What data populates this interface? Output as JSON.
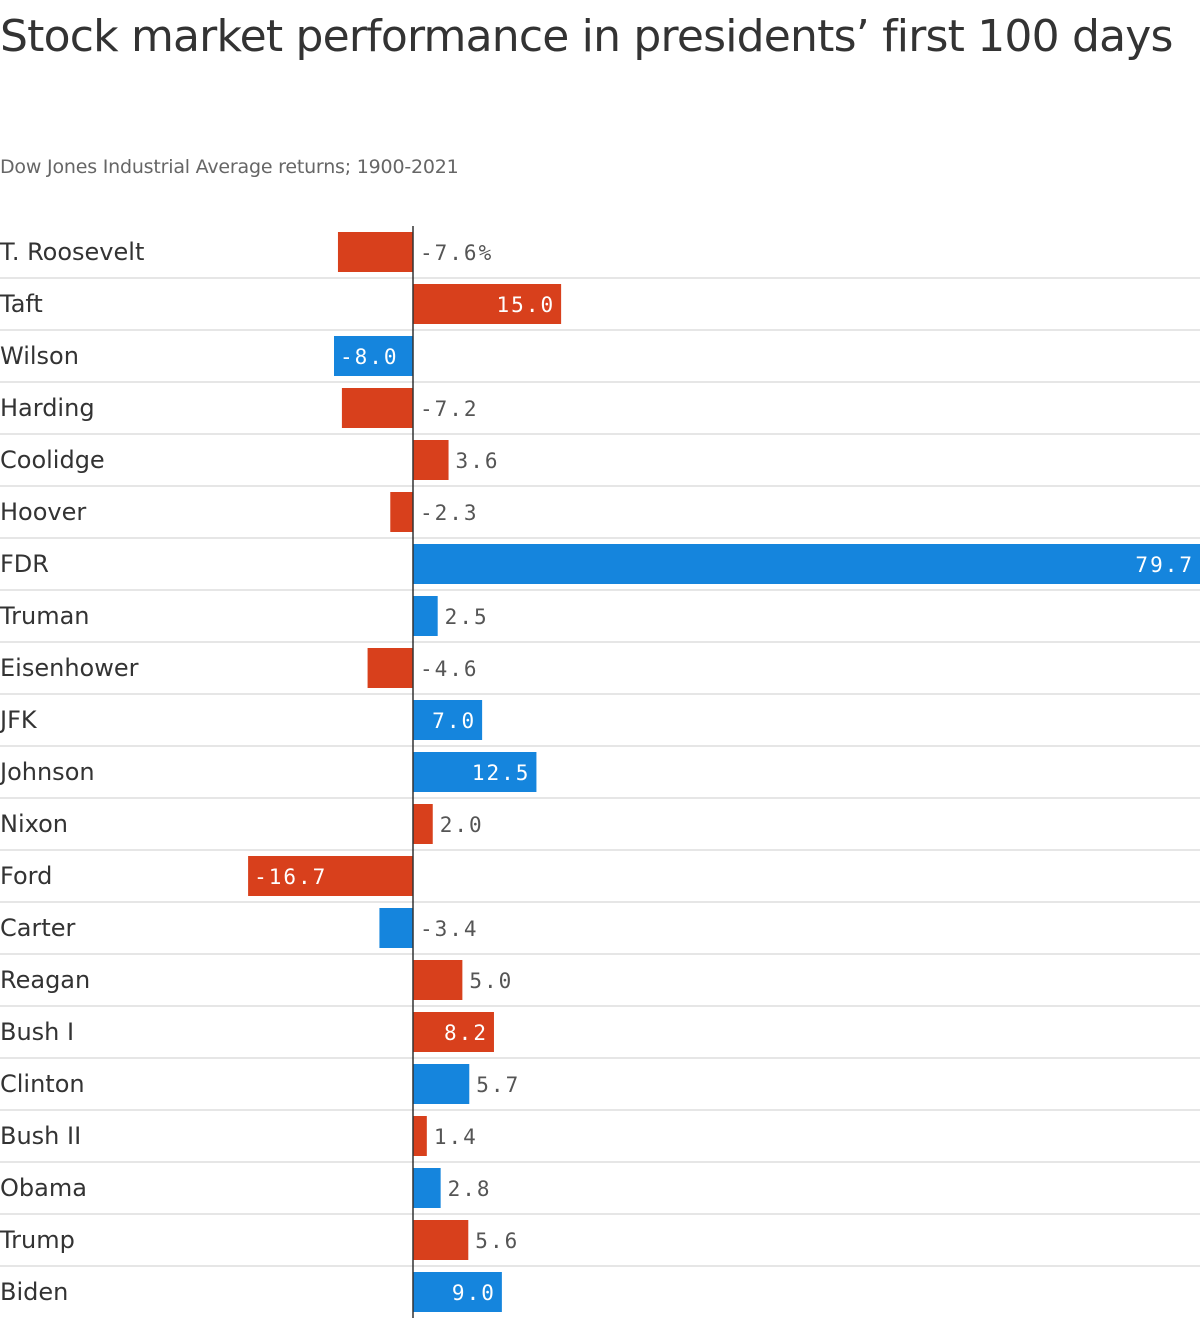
{
  "title": "Stock market performance in presidents’ first 100 days",
  "subtitle": "Dow Jones Industrial Average returns; 1900-2021",
  "colors": {
    "red": "#d8401c",
    "blue": "#1585dd",
    "gridline": "#dddddd",
    "axis": "#333333",
    "label_out": "#555555",
    "label_in": "#ffffff"
  },
  "chart_data": {
    "type": "bar",
    "orientation": "horizontal",
    "unit_suffix": "%",
    "xlim": [
      -30,
      79.7
    ],
    "categories": [
      "T. Roosevelt",
      "Taft",
      "Wilson",
      "Harding",
      "Coolidge",
      "Hoover",
      "FDR",
      "Truman",
      "Eisenhower",
      "JFK",
      "Johnson",
      "Nixon",
      "Ford",
      "Carter",
      "Reagan",
      "Bush I",
      "Clinton",
      "Bush II",
      "Obama",
      "Trump",
      "Biden"
    ],
    "values": [
      -7.6,
      15.0,
      -8.0,
      -7.2,
      3.6,
      -2.3,
      79.7,
      2.5,
      -4.6,
      7.0,
      12.5,
      2.0,
      -16.7,
      -3.4,
      5.0,
      8.2,
      5.7,
      1.4,
      2.8,
      5.6,
      9.0
    ],
    "value_labels": [
      "-7.6%",
      "15.0",
      "-8.0",
      "-7.2",
      "3.6",
      "-2.3",
      "79.7",
      "2.5",
      "-4.6",
      "7.0",
      "12.5",
      "2.0",
      "-16.7",
      "-3.4",
      "5.0",
      "8.2",
      "5.7",
      "1.4",
      "2.8",
      "5.6",
      "9.0"
    ],
    "party_colors": [
      "red",
      "red",
      "blue",
      "red",
      "red",
      "red",
      "blue",
      "blue",
      "red",
      "blue",
      "blue",
      "red",
      "red",
      "blue",
      "red",
      "red",
      "blue",
      "red",
      "blue",
      "red",
      "blue"
    ]
  }
}
